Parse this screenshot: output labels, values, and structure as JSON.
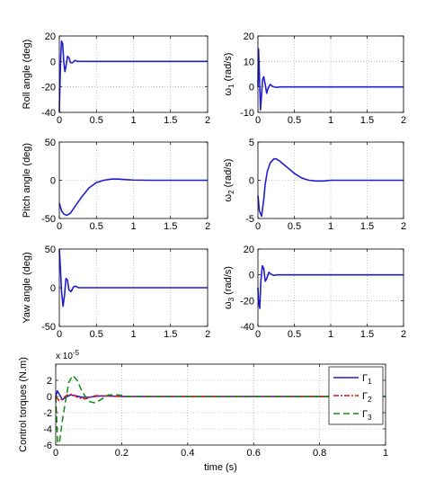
{
  "chart_data": [
    {
      "type": "line",
      "ylabel": "Roll angle (deg)",
      "xlim": [
        0,
        2
      ],
      "ylim": [
        -40,
        20
      ],
      "xticks": [
        "0",
        "0.5",
        "1",
        "1.5",
        "2"
      ],
      "yticks": [
        "-40",
        "-20",
        "0",
        "20"
      ],
      "grid": true,
      "series": [
        {
          "color": "#1f1fd0",
          "x": [
            0,
            0.01,
            0.02,
            0.03,
            0.045,
            0.06,
            0.075,
            0.09,
            0.11,
            0.13,
            0.15,
            0.18,
            0.21,
            0.25,
            0.3,
            0.4,
            2
          ],
          "y": [
            -40,
            -15,
            5,
            16,
            14,
            0,
            -8,
            -4,
            4,
            3,
            -1,
            -1,
            0.8,
            0,
            0,
            0,
            0
          ]
        }
      ]
    },
    {
      "type": "line",
      "ylabel": "ω1 (rad/s)",
      "xlim": [
        0,
        2
      ],
      "ylim": [
        -10,
        20
      ],
      "xticks": [
        "0",
        "0.5",
        "1",
        "1.5",
        "2"
      ],
      "yticks": [
        "-10",
        "0",
        "10",
        "20"
      ],
      "grid": true,
      "series": [
        {
          "color": "#1f1fd0",
          "x": [
            0,
            0.008,
            0.02,
            0.035,
            0.05,
            0.065,
            0.08,
            0.1,
            0.12,
            0.14,
            0.17,
            0.2,
            0.25,
            0.3,
            0.4,
            2
          ],
          "y": [
            0,
            15,
            5,
            -9,
            -3,
            3,
            4,
            1,
            -2.5,
            -0.5,
            1,
            0.2,
            -0.2,
            0,
            0,
            0
          ]
        }
      ]
    },
    {
      "type": "line",
      "ylabel": "Pitch angle (deg)",
      "xlim": [
        0,
        2
      ],
      "ylim": [
        -50,
        50
      ],
      "xticks": [
        "0",
        "0.5",
        "1",
        "1.5",
        "2"
      ],
      "yticks": [
        "-50",
        "0",
        "50"
      ],
      "grid": true,
      "series": [
        {
          "color": "#1f1fd0",
          "x": [
            0,
            0.03,
            0.06,
            0.1,
            0.15,
            0.2,
            0.3,
            0.4,
            0.5,
            0.6,
            0.7,
            0.8,
            0.9,
            1.0,
            1.2,
            2
          ],
          "y": [
            -30,
            -40,
            -44,
            -46,
            -43,
            -36,
            -22,
            -10,
            -3,
            0,
            1.5,
            1.5,
            0.8,
            0.3,
            0,
            0
          ]
        }
      ]
    },
    {
      "type": "line",
      "ylabel": "ω2 (rad/s)",
      "xlim": [
        0,
        2
      ],
      "ylim": [
        -5,
        5
      ],
      "xticks": [
        "0",
        "0.5",
        "1",
        "1.5",
        "2"
      ],
      "yticks": [
        "-5",
        "0",
        "5"
      ],
      "grid": true,
      "series": [
        {
          "color": "#1f1fd0",
          "x": [
            0,
            0.02,
            0.05,
            0.08,
            0.1,
            0.13,
            0.17,
            0.22,
            0.25,
            0.3,
            0.4,
            0.5,
            0.6,
            0.7,
            0.8,
            0.9,
            1.0,
            2
          ],
          "y": [
            -2,
            -4,
            -4.7,
            -2.5,
            -0.5,
            1.2,
            2.3,
            2.8,
            2.8,
            2.5,
            1.7,
            0.9,
            0.3,
            0,
            -0.1,
            -0.1,
            0,
            0
          ]
        }
      ]
    },
    {
      "type": "line",
      "ylabel": "Yaw angle (deg)",
      "xlim": [
        0,
        2
      ],
      "ylim": [
        -50,
        50
      ],
      "xticks": [
        "0",
        "0.5",
        "1",
        "1.5",
        "2"
      ],
      "yticks": [
        "-50",
        "0",
        "50"
      ],
      "grid": true,
      "series": [
        {
          "color": "#1f1fd0",
          "x": [
            0,
            0.015,
            0.03,
            0.05,
            0.07,
            0.09,
            0.11,
            0.13,
            0.16,
            0.19,
            0.22,
            0.26,
            0.3,
            0.4,
            2
          ],
          "y": [
            50,
            25,
            -5,
            -24,
            -10,
            12,
            10,
            -3,
            -5,
            1,
            2,
            0,
            0,
            0,
            0
          ]
        }
      ]
    },
    {
      "type": "line",
      "ylabel": "ω3 (rad/s)",
      "xlim": [
        0,
        2
      ],
      "ylim": [
        -40,
        20
      ],
      "xticks": [
        "0",
        "0.5",
        "1",
        "1.5",
        "2"
      ],
      "yticks": [
        "-40",
        "-20",
        "0",
        "20"
      ],
      "grid": true,
      "series": [
        {
          "color": "#1f1fd0",
          "x": [
            0,
            0.01,
            0.025,
            0.04,
            0.06,
            0.08,
            0.1,
            0.12,
            0.15,
            0.18,
            0.22,
            0.26,
            0.3,
            0.4,
            2
          ],
          "y": [
            -10,
            -22,
            -26,
            -5,
            7,
            5,
            -5,
            -3,
            2,
            0.5,
            -0.5,
            0,
            0,
            0,
            0
          ]
        }
      ]
    },
    {
      "type": "line",
      "ylabel": "Control torques (N.m)",
      "xlabel": "time (s)",
      "scale_label": "x 10",
      "scale_exp": "-5",
      "xlim": [
        0,
        1
      ],
      "ylim": [
        -6,
        4
      ],
      "xticks": [
        "0",
        "0.2",
        "0.4",
        "0.6",
        "0.8",
        "1"
      ],
      "yticks": [
        "-6",
        "-4",
        "-2",
        "0",
        "2"
      ],
      "grid": true,
      "legend": "right",
      "series": [
        {
          "name": "Γ",
          "sub": "1",
          "color": "#1f1fd0",
          "dash": "",
          "x": [
            0,
            0.005,
            0.012,
            0.02,
            0.03,
            0.045,
            0.06,
            0.08,
            0.1,
            0.13,
            0.16,
            0.2,
            0.25,
            1
          ],
          "y": [
            0,
            0.7,
            0.2,
            -0.4,
            -0.1,
            0.2,
            0.1,
            -0.1,
            -0.1,
            0.05,
            0.05,
            0,
            0,
            0
          ]
        },
        {
          "name": "Γ",
          "sub": "2",
          "color": "#e01010",
          "dash": "6 2 2 2",
          "x": [
            0,
            0.01,
            0.02,
            0.035,
            0.05,
            0.07,
            0.09,
            0.12,
            0.15,
            0.2,
            0.25,
            1
          ],
          "y": [
            0,
            -0.5,
            -0.3,
            0.2,
            0.3,
            -0.2,
            -0.3,
            0.1,
            0.1,
            0,
            0,
            0
          ]
        },
        {
          "name": "Γ",
          "sub": "3",
          "color": "#138a13",
          "dash": "7 4",
          "x": [
            0,
            0.006,
            0.012,
            0.02,
            0.03,
            0.04,
            0.052,
            0.065,
            0.08,
            0.1,
            0.12,
            0.14,
            0.16,
            0.19,
            0.22,
            0.26,
            1
          ],
          "y": [
            0,
            -5.8,
            -5.5,
            -3,
            -0.5,
            1.8,
            2.6,
            2,
            0.6,
            -0.6,
            -0.8,
            -0.3,
            0.2,
            0.2,
            0,
            0,
            0
          ]
        }
      ]
    }
  ]
}
